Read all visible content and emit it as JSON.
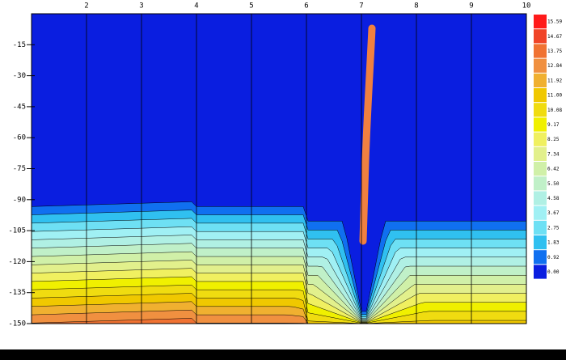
{
  "chart_data": {
    "type": "contour",
    "xlim": [
      1,
      10
    ],
    "xticks": [
      2,
      3,
      4,
      5,
      6,
      7,
      8,
      9,
      10
    ],
    "ylim": [
      -150,
      0
    ],
    "yticks": [
      -15,
      -30,
      -45,
      -60,
      -75,
      -90,
      -105,
      -120,
      -135,
      -150
    ],
    "levels": [
      15.59,
      14.67,
      13.75,
      12.84,
      11.92,
      {
        "value": 11.0,
        "label": "11.00"
      },
      10.08,
      9.17,
      8.25,
      7.34,
      6.42,
      {
        "value": 5.5,
        "label": "5.50"
      },
      4.58,
      3.67,
      2.75,
      1.83,
      0.92,
      {
        "value": 0,
        "label": "0.00"
      }
    ],
    "level_colors": [
      "#ff1a1a",
      "#f04428",
      "#f07232",
      "#f09040",
      "#f0b030",
      "#f0c800",
      "#f0dc10",
      "#f0f000",
      "#f0f060",
      "#e2f08c",
      "#d0f0a8",
      "#c0f0c8",
      "#b0f0e4",
      "#a0f0f4",
      "#6ee0f4",
      "#30c0f0",
      "#1070f0",
      "#0a1ee0"
    ]
  }
}
